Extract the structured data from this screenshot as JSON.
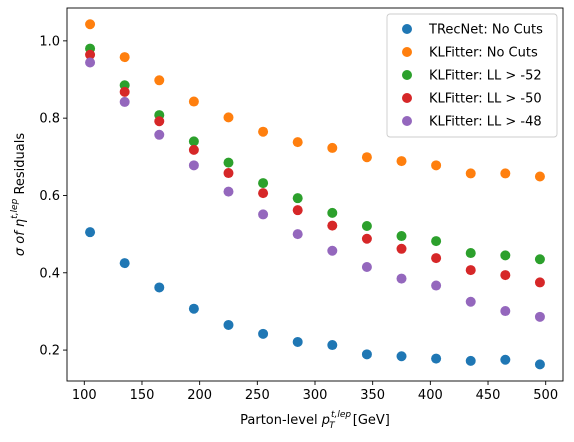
{
  "chart_data": {
    "type": "scatter",
    "xlabel": "Parton-level p_T^{t,lep} [GeV]",
    "xlabel_main": "Parton-level ",
    "xlabel_symbol": "p",
    "xlabel_sub": "T",
    "xlabel_sup": "t,lep",
    "xlabel_unit": " [GeV]",
    "ylabel": "σ of η^{t,lep} Residuals",
    "ylabel_prefix": "σ of ",
    "ylabel_symbol": "η",
    "ylabel_sup": "t,lep",
    "ylabel_suffix": " Residuals",
    "xlim": [
      85,
      515
    ],
    "ylim": [
      0.12,
      1.085
    ],
    "xticks": [
      "100",
      "150",
      "200",
      "250",
      "300",
      "350",
      "400",
      "450",
      "500"
    ],
    "yticks": [
      "0.2",
      "0.4",
      "0.6",
      "0.8",
      "1.0"
    ],
    "grid": false,
    "legend_position": "top-right",
    "x": [
      105,
      135,
      165,
      195,
      225,
      255,
      285,
      315,
      345,
      375,
      405,
      435,
      465,
      495
    ],
    "series": [
      {
        "name": "TRecNet: No Cuts",
        "color": "#1f77b4",
        "values": [
          0.505,
          0.425,
          0.362,
          0.307,
          0.265,
          0.242,
          0.221,
          0.213,
          0.189,
          0.184,
          0.178,
          0.172,
          0.175,
          0.163
        ]
      },
      {
        "name": "KLFitter: No Cuts",
        "color": "#ff7f0e",
        "values": [
          1.043,
          0.958,
          0.898,
          0.843,
          0.802,
          0.765,
          0.738,
          0.723,
          0.699,
          0.689,
          0.678,
          0.657,
          0.657,
          0.649
        ]
      },
      {
        "name": "KLFitter: LL > -52",
        "color": "#2ca02c",
        "values": [
          0.98,
          0.885,
          0.808,
          0.74,
          0.685,
          0.632,
          0.593,
          0.555,
          0.521,
          0.495,
          0.482,
          0.451,
          0.445,
          0.435
        ]
      },
      {
        "name": "KLFitter: LL > -50",
        "color": "#d62728",
        "values": [
          0.964,
          0.868,
          0.792,
          0.718,
          0.658,
          0.606,
          0.562,
          0.522,
          0.488,
          0.462,
          0.438,
          0.407,
          0.394,
          0.375
        ]
      },
      {
        "name": "KLFitter: LL > -48",
        "color": "#9467bd",
        "values": [
          0.944,
          0.842,
          0.757,
          0.678,
          0.61,
          0.551,
          0.5,
          0.457,
          0.415,
          0.385,
          0.367,
          0.325,
          0.301,
          0.286
        ]
      }
    ]
  }
}
